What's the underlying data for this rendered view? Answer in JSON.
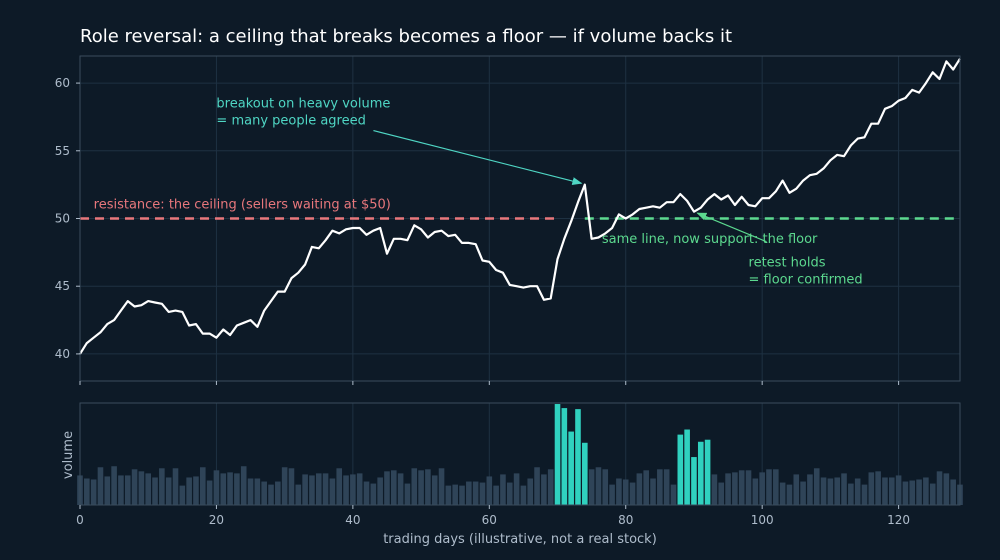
{
  "chart_data": {
    "type": "line",
    "title": "Role reversal: a ceiling that breaks becomes a floor — if volume backs it",
    "xlabel": "trading days (illustrative, not a real stock)",
    "ylabel_volume": "volume",
    "xlim": [
      0,
      129
    ],
    "ylim": [
      38,
      62
    ],
    "x_ticks": [
      0,
      20,
      40,
      60,
      80,
      100,
      120
    ],
    "y_ticks": [
      40,
      45,
      50,
      55,
      60
    ],
    "grid": true,
    "price": [
      40.0,
      40.8,
      41.2,
      41.6,
      42.2,
      42.5,
      43.2,
      43.9,
      43.5,
      43.6,
      43.9,
      43.8,
      43.7,
      43.1,
      43.2,
      43.1,
      42.1,
      42.2,
      41.5,
      41.5,
      41.2,
      41.8,
      41.4,
      42.1,
      42.3,
      42.5,
      42.0,
      43.2,
      43.9,
      44.6,
      44.6,
      45.6,
      46.0,
      46.6,
      47.9,
      47.8,
      48.4,
      49.1,
      48.9,
      49.2,
      49.3,
      49.3,
      48.8,
      49.1,
      49.3,
      47.4,
      48.5,
      48.5,
      48.4,
      49.5,
      49.2,
      48.6,
      49.0,
      49.1,
      48.7,
      48.8,
      48.2,
      48.2,
      48.1,
      46.9,
      46.8,
      46.2,
      46.0,
      45.1,
      45.0,
      44.9,
      45.0,
      45.0,
      44.0,
      44.1,
      47.0,
      48.5,
      49.8,
      51.2,
      52.5,
      48.5,
      48.6,
      48.9,
      49.3,
      50.3,
      50.0,
      50.3,
      50.7,
      50.8,
      50.9,
      50.8,
      51.2,
      51.2,
      51.8,
      51.3,
      50.5,
      50.8,
      51.4,
      51.8,
      51.4,
      51.7,
      51.0,
      51.6,
      51.0,
      50.9,
      51.5,
      51.5,
      52.0,
      52.8,
      51.9,
      52.2,
      52.8,
      53.2,
      53.3,
      53.7,
      54.3,
      54.7,
      54.6,
      55.4,
      55.9,
      56.0,
      57.0,
      57.0,
      58.1,
      58.3,
      58.7,
      58.9,
      59.5,
      59.3,
      60.0,
      60.8,
      60.3,
      61.6,
      61.0,
      61.8
    ],
    "volume": [
      0.29,
      0.26,
      0.25,
      0.37,
      0.28,
      0.38,
      0.29,
      0.29,
      0.35,
      0.33,
      0.31,
      0.27,
      0.36,
      0.27,
      0.36,
      0.19,
      0.27,
      0.28,
      0.37,
      0.24,
      0.34,
      0.31,
      0.32,
      0.31,
      0.38,
      0.26,
      0.26,
      0.23,
      0.2,
      0.23,
      0.37,
      0.36,
      0.2,
      0.3,
      0.29,
      0.31,
      0.31,
      0.26,
      0.36,
      0.29,
      0.3,
      0.31,
      0.23,
      0.21,
      0.27,
      0.33,
      0.34,
      0.31,
      0.21,
      0.36,
      0.34,
      0.35,
      0.29,
      0.36,
      0.19,
      0.2,
      0.19,
      0.23,
      0.23,
      0.22,
      0.28,
      0.19,
      0.3,
      0.22,
      0.31,
      0.19,
      0.26,
      0.37,
      0.3,
      0.35,
      0.99,
      0.95,
      0.72,
      0.94,
      0.61,
      0.35,
      0.37,
      0.35,
      0.2,
      0.26,
      0.25,
      0.22,
      0.31,
      0.34,
      0.26,
      0.35,
      0.35,
      0.2,
      0.69,
      0.74,
      0.47,
      0.62,
      0.64,
      0.3,
      0.22,
      0.31,
      0.32,
      0.34,
      0.34,
      0.26,
      0.32,
      0.35,
      0.35,
      0.22,
      0.2,
      0.3,
      0.23,
      0.3,
      0.36,
      0.27,
      0.26,
      0.27,
      0.31,
      0.21,
      0.26,
      0.2,
      0.32,
      0.33,
      0.27,
      0.27,
      0.29,
      0.23,
      0.24,
      0.25,
      0.27,
      0.21,
      0.33,
      0.31,
      0.25,
      0.2
    ],
    "highlight_volume": [
      [
        70,
        74
      ],
      [
        88,
        92
      ]
    ],
    "resistance": {
      "value": 50,
      "x_range": [
        0,
        70
      ],
      "label": "resistance: the ceiling (sellers waiting at $50)"
    },
    "support": {
      "value": 50,
      "x_range": [
        74,
        129
      ],
      "label": "same line, now support: the floor"
    },
    "annotations": [
      {
        "lines": [
          "breakout on heavy volume",
          "= many people agreed"
        ],
        "point": [
          73.5,
          52.6
        ],
        "text_at": [
          20,
          57.6
        ]
      },
      {
        "lines": [
          "retest holds",
          "= floor confirmed"
        ],
        "point": [
          90.5,
          50.4
        ],
        "text_at": [
          98,
          45.7
        ]
      }
    ],
    "colors": {
      "background": "#0d1a27",
      "price_line": "#ffffff",
      "resistance": "#e8777c",
      "support": "#5cd98f",
      "breakout_annotation": "#4fd6c4",
      "volume_normal": "#2f4458",
      "volume_highlight": "#30d1bf",
      "grid": "#1e3142",
      "frame": "#3a4c5c"
    }
  }
}
